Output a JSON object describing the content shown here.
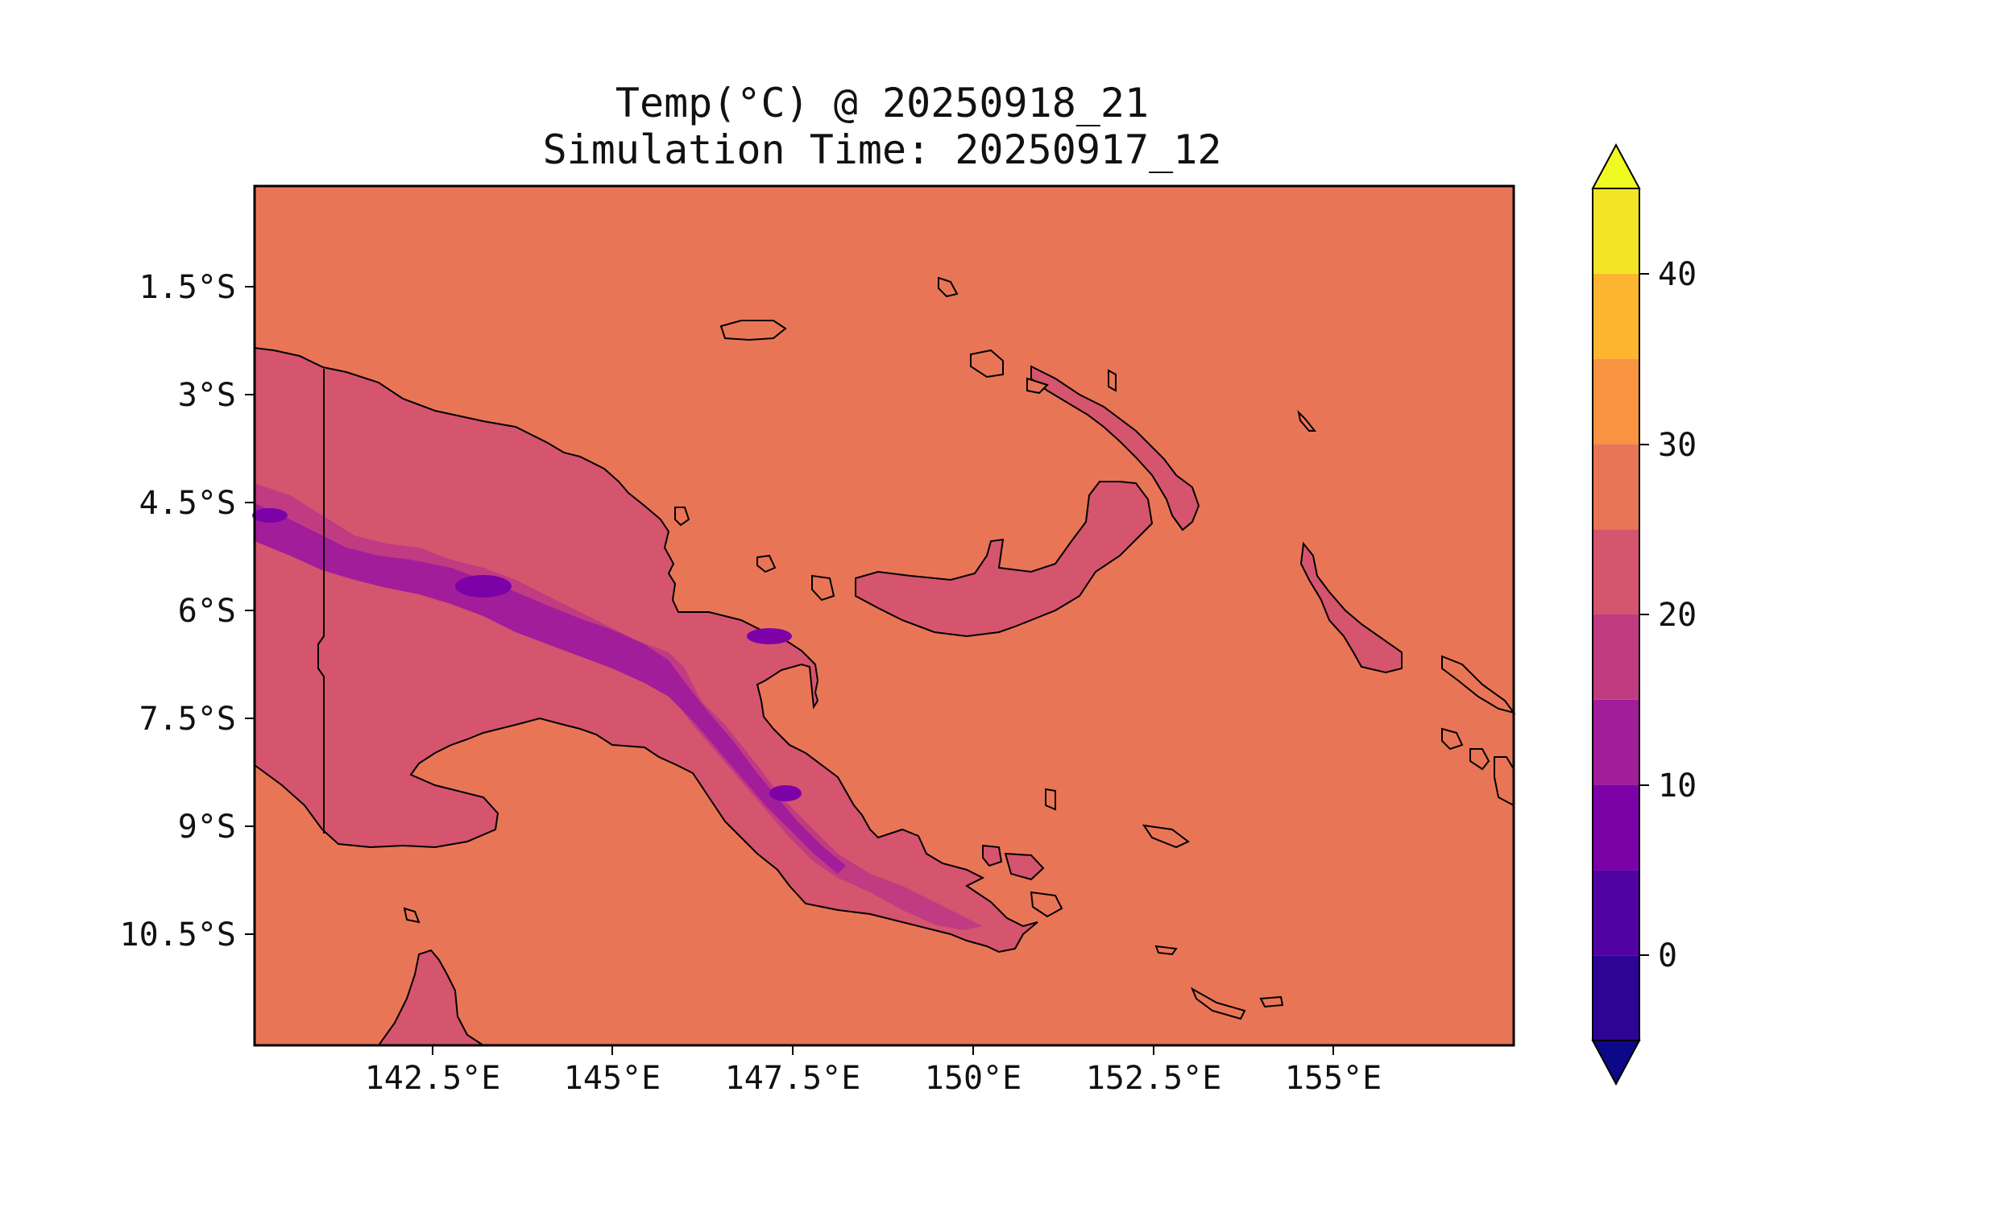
{
  "title": {
    "line1": "Temp(°C) @ 20250918_21",
    "line2": "Simulation Time: 20250917_12"
  },
  "map": {
    "region": "Papua New Guinea",
    "background_color": "#E97557",
    "lat_ticks": [
      "1.5°S",
      "3°S",
      "4.5°S",
      "6°S",
      "7.5°S",
      "9°S",
      "10.5°S"
    ],
    "lon_ticks": [
      "142.5°E",
      "145°E",
      "147.5°E",
      "150°E",
      "152.5°E",
      "155°E"
    ]
  },
  "colorbar": {
    "tick_labels": [
      "0",
      "10",
      "20",
      "30",
      "40"
    ],
    "bands": [
      {
        "from": -5,
        "to": 0,
        "color": "#2C0594"
      },
      {
        "from": 0,
        "to": 5,
        "color": "#5202A3"
      },
      {
        "from": 5,
        "to": 10,
        "color": "#7C02A8"
      },
      {
        "from": 10,
        "to": 15,
        "color": "#A21D9A"
      },
      {
        "from": 15,
        "to": 20,
        "color": "#C13B82"
      },
      {
        "from": 20,
        "to": 25,
        "color": "#D5546E"
      },
      {
        "from": 25,
        "to": 30,
        "color": "#E97557"
      },
      {
        "from": 30,
        "to": 35,
        "color": "#F89441"
      },
      {
        "from": 35,
        "to": 40,
        "color": "#FDB42F"
      },
      {
        "from": 40,
        "to": 45,
        "color": "#F2E426"
      }
    ],
    "under_color": "#0D0887",
    "over_color": "#F0F921"
  }
}
